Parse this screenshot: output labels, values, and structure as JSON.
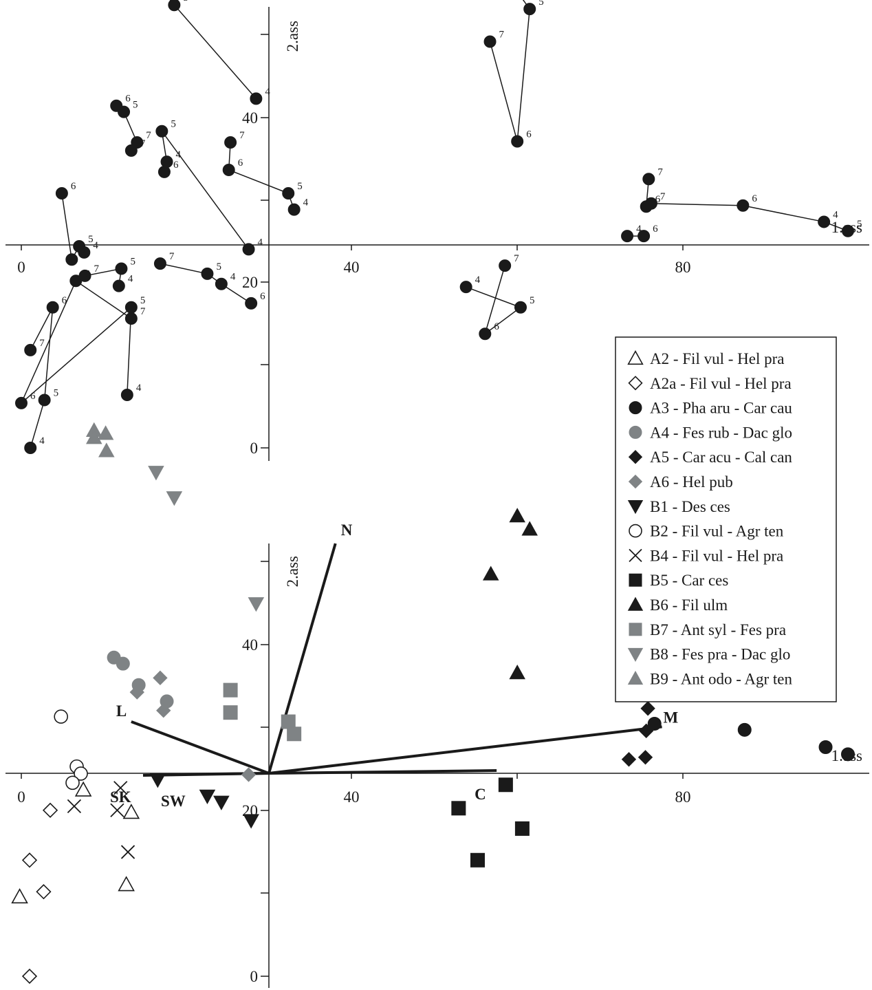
{
  "chart_data": [
    {
      "type": "scatter",
      "panel": "top",
      "xlabel": "1.ass",
      "ylabel": "2.ass",
      "x_ticks": [
        "0",
        "40",
        "80"
      ],
      "y_ticks": [
        "0",
        "20",
        "40"
      ],
      "xlim": [
        0,
        103
      ],
      "ylim": [
        0,
        53
      ],
      "origin": [
        30,
        24.5
      ],
      "series": [
        {
          "group": "A3",
          "marker": "circle",
          "color": "#1a1a1a",
          "points": [
            {
              "x": 8.8,
              "y": 48.5,
              "label": "6"
            },
            {
              "x": 10.2,
              "y": 48.0,
              "label": "7"
            },
            {
              "x": 8.8,
              "y": 47.5,
              "label": "4"
            },
            {
              "x": 10.3,
              "y": 46.0,
              "label": "5"
            }
          ]
        },
        {
          "group": "A3",
          "marker": "circle",
          "color": "#1a1a1a",
          "points": [
            {
              "x": 16.3,
              "y": 45.8,
              "label": "7 6"
            },
            {
              "x": 18.5,
              "y": 43.5,
              "label": "5"
            },
            {
              "x": 28.4,
              "y": 34.3,
              "label": "4"
            }
          ]
        },
        {
          "group": "A3",
          "marker": "circle",
          "color": "#1a1a1a",
          "points": [
            {
              "x": 60.0,
              "y": 44.8,
              "label": "4"
            },
            {
              "x": 61.5,
              "y": 43.1,
              "label": "5"
            },
            {
              "x": 60.0,
              "y": 30.1,
              "label": "6"
            },
            {
              "x": 56.7,
              "y": 39.9,
              "label": "7"
            }
          ]
        },
        {
          "group": "A3",
          "marker": "circle",
          "color": "#1a1a1a",
          "points": [
            {
              "x": 11.5,
              "y": 33.6,
              "label": "6"
            },
            {
              "x": 12.4,
              "y": 33.0,
              "label": "5"
            },
            {
              "x": 14.0,
              "y": 30.0,
              "label": "7"
            },
            {
              "x": 13.3,
              "y": 29.2,
              "label": "7"
            }
          ]
        },
        {
          "group": "A3",
          "marker": "circle",
          "color": "#1a1a1a",
          "points": [
            {
              "x": 17.0,
              "y": 31.1,
              "label": "5"
            },
            {
              "x": 17.6,
              "y": 28.1,
              "label": "4"
            },
            {
              "x": 17.3,
              "y": 27.1,
              "label": "6"
            }
          ]
        },
        {
          "group": "A3",
          "marker": "circle",
          "color": "#1a1a1a",
          "points": [
            {
              "x": 17.0,
              "y": 31.1,
              "label": "5"
            },
            {
              "x": 27.5,
              "y": 19.5,
              "label": "4"
            }
          ]
        },
        {
          "group": "A3",
          "marker": "circle",
          "color": "#1a1a1a",
          "points": [
            {
              "x": 25.3,
              "y": 30.0,
              "label": "7"
            },
            {
              "x": 25.1,
              "y": 27.3,
              "label": "6"
            },
            {
              "x": 32.3,
              "y": 25.0,
              "label": "5"
            },
            {
              "x": 33.0,
              "y": 23.4,
              "label": "4"
            }
          ]
        },
        {
          "group": "A3",
          "marker": "circle",
          "color": "#1a1a1a",
          "points": [
            {
              "x": 75.9,
              "y": 26.4,
              "label": "7"
            },
            {
              "x": 75.6,
              "y": 23.7,
              "label": "6"
            },
            {
              "x": 76.2,
              "y": 24.0,
              "label": "7"
            },
            {
              "x": 87.3,
              "y": 23.8,
              "label": "6"
            },
            {
              "x": 97.1,
              "y": 22.2,
              "label": "4"
            },
            {
              "x": 100.0,
              "y": 21.3,
              "label": "5"
            }
          ]
        },
        {
          "group": "A3",
          "marker": "circle",
          "color": "#1a1a1a",
          "points": [
            {
              "x": 73.3,
              "y": 20.8,
              "label": "4"
            },
            {
              "x": 75.3,
              "y": 20.8,
              "label": "6"
            }
          ]
        },
        {
          "group": "A3",
          "marker": "circle",
          "color": "#1a1a1a",
          "points": [
            {
              "x": 4.9,
              "y": 25.0,
              "label": "6"
            },
            {
              "x": 6.1,
              "y": 18.5,
              "label": "7"
            },
            {
              "x": 7.0,
              "y": 19.8,
              "label": "5"
            },
            {
              "x": 7.6,
              "y": 19.2,
              "label": "4"
            }
          ]
        },
        {
          "group": "A3",
          "marker": "circle",
          "color": "#1a1a1a",
          "points": [
            {
              "x": 53.8,
              "y": 15.8,
              "label": "4"
            },
            {
              "x": 60.4,
              "y": 13.8,
              "label": "5"
            },
            {
              "x": 56.1,
              "y": 11.2,
              "label": "6"
            },
            {
              "x": 58.5,
              "y": 17.9,
              "label": "7"
            }
          ]
        },
        {
          "group": "A3",
          "marker": "circle",
          "color": "#1a1a1a",
          "points": [
            {
              "x": 6.6,
              "y": 16.4,
              "label": "6"
            },
            {
              "x": 7.7,
              "y": 16.9,
              "label": "7"
            },
            {
              "x": 12.1,
              "y": 17.6,
              "label": "5"
            },
            {
              "x": 11.8,
              "y": 15.9,
              "label": "4"
            }
          ]
        },
        {
          "group": "A3",
          "marker": "circle",
          "color": "#1a1a1a",
          "points": [
            {
              "x": 6.6,
              "y": 16.4,
              "label": "6"
            },
            {
              "x": 13.3,
              "y": 12.7,
              "label": "7"
            }
          ]
        },
        {
          "group": "A3",
          "marker": "circle",
          "color": "#1a1a1a",
          "points": [
            {
              "x": 13.3,
              "y": 13.8,
              "label": "5"
            },
            {
              "x": 12.8,
              "y": 5.2,
              "label": "4"
            }
          ]
        },
        {
          "group": "A3",
          "marker": "circle",
          "color": "#1a1a1a",
          "points": [
            {
              "x": 3.8,
              "y": 13.8,
              "label": "6"
            },
            {
              "x": 1.1,
              "y": 9.6,
              "label": "7"
            }
          ]
        },
        {
          "group": "A3",
          "marker": "circle",
          "color": "#1a1a1a",
          "points": [
            {
              "x": 3.8,
              "y": 13.8,
              "label": "6"
            },
            {
              "x": 2.8,
              "y": 4.7,
              "label": "5"
            },
            {
              "x": 1.1,
              "y": 0.0,
              "label": "4"
            }
          ]
        },
        {
          "group": "A3",
          "marker": "circle",
          "color": "#1a1a1a",
          "points": [
            {
              "x": 0.0,
              "y": 4.4,
              "label": "6"
            },
            {
              "x": 6.6,
              "y": 16.4,
              "label": "6"
            }
          ]
        },
        {
          "group": "A3",
          "marker": "circle",
          "color": "#1a1a1a",
          "points": [
            {
              "x": 0.0,
              "y": 4.4,
              "label": "6"
            },
            {
              "x": 13.3,
              "y": 13.8,
              "label": "5"
            }
          ]
        },
        {
          "group": "A3",
          "marker": "circle",
          "color": "#1a1a1a",
          "points": [
            {
              "x": 16.8,
              "y": 18.1,
              "label": "7"
            },
            {
              "x": 22.5,
              "y": 17.1,
              "label": "5"
            },
            {
              "x": 24.2,
              "y": 16.1,
              "label": "4"
            },
            {
              "x": 27.8,
              "y": 14.2,
              "label": "6"
            }
          ]
        }
      ]
    },
    {
      "type": "scatter",
      "panel": "bottom",
      "xlabel": "1.ass",
      "ylabel": "2.ass",
      "x_ticks": [
        "0",
        "40",
        "80"
      ],
      "y_ticks": [
        "0",
        "20",
        "40"
      ],
      "xlim": [
        0,
        103
      ],
      "ylim": [
        0,
        53
      ],
      "origin": [
        30,
        24.5
      ],
      "vectors": [
        {
          "label": "N",
          "x": 38.0,
          "y": 42.5
        },
        {
          "label": "L",
          "x": 13.3,
          "y": 25.0
        },
        {
          "label": "SK",
          "x": 14.8,
          "y": 24.5
        },
        {
          "label": "SW",
          "x": 16.5,
          "y": 24.5
        },
        {
          "label": "M",
          "x": 77.5,
          "y": 24.5
        },
        {
          "label": "C",
          "x": 57.5,
          "y": 20.2
        }
      ],
      "series": [
        {
          "name": "A2 - Fil vul - Hel pra",
          "marker": "triangle-up",
          "filled": false,
          "color": "#1a1a1a",
          "points": [
            {
              "x": 7.5,
              "y": 18.3
            },
            {
              "x": 13.3,
              "y": 16.1
            },
            {
              "x": 12.7,
              "y": 9.0
            },
            {
              "x": -0.2,
              "y": 7.8
            }
          ]
        },
        {
          "name": "A2a - Fil vul - Hel pra",
          "marker": "diamond",
          "filled": false,
          "color": "#1a1a1a",
          "points": [
            {
              "x": 3.5,
              "y": 16.3
            },
            {
              "x": 1.0,
              "y": 11.4
            },
            {
              "x": 2.7,
              "y": 8.3
            },
            {
              "x": 1.0,
              "y": 0.0
            }
          ]
        },
        {
          "name": "A3 - Pha aru - Car cau",
          "marker": "circle",
          "filled": true,
          "color": "#1a1a1a",
          "points": [
            {
              "x": 76.6,
              "y": 24.8
            },
            {
              "x": 87.5,
              "y": 24.2
            },
            {
              "x": 97.3,
              "y": 22.5
            },
            {
              "x": 100.0,
              "y": 21.8
            }
          ]
        },
        {
          "name": "A4 - Fes rub - Dac glo",
          "marker": "circle",
          "filled": true,
          "color": "#7f8385",
          "points": [
            {
              "x": 11.2,
              "y": 31.3
            },
            {
              "x": 12.3,
              "y": 30.7
            },
            {
              "x": 14.2,
              "y": 28.6
            },
            {
              "x": 17.6,
              "y": 27.0
            }
          ]
        },
        {
          "name": "A5 - Car acu - Cal can",
          "marker": "diamond",
          "filled": true,
          "color": "#1a1a1a",
          "points": [
            {
              "x": 75.8,
              "y": 26.3
            },
            {
              "x": 75.6,
              "y": 24.1
            },
            {
              "x": 73.5,
              "y": 21.3
            },
            {
              "x": 75.5,
              "y": 21.5
            }
          ]
        },
        {
          "name": "A6 - Hel pub",
          "marker": "diamond",
          "filled": true,
          "color": "#7f8385",
          "points": [
            {
              "x": 16.8,
              "y": 29.3
            },
            {
              "x": 14.0,
              "y": 27.9
            },
            {
              "x": 17.2,
              "y": 26.1
            },
            {
              "x": 27.5,
              "y": 19.8
            }
          ]
        },
        {
          "name": "B1 - Des ces",
          "marker": "triangle-down",
          "filled": true,
          "color": "#1a1a1a",
          "points": [
            {
              "x": 16.5,
              "y": 19.3
            },
            {
              "x": 22.5,
              "y": 17.7
            },
            {
              "x": 24.2,
              "y": 17.1
            },
            {
              "x": 27.8,
              "y": 15.3
            }
          ]
        },
        {
          "name": "B2 - Fil vul - Agr ten",
          "marker": "circle",
          "filled": false,
          "color": "#1a1a1a",
          "points": [
            {
              "x": 4.8,
              "y": 25.5
            },
            {
              "x": 6.7,
              "y": 20.6
            },
            {
              "x": 7.2,
              "y": 19.9
            },
            {
              "x": 6.2,
              "y": 19.0
            }
          ]
        },
        {
          "name": "B4 - Fil vul - Hel pra",
          "marker": "x",
          "filled": false,
          "color": "#1a1a1a",
          "points": [
            {
              "x": 12.0,
              "y": 18.5
            },
            {
              "x": 6.4,
              "y": 16.7
            },
            {
              "x": 11.6,
              "y": 16.3
            },
            {
              "x": 12.9,
              "y": 12.2
            }
          ]
        },
        {
          "name": "B5 - Car ces",
          "marker": "square",
          "filled": true,
          "color": "#1a1a1a",
          "points": [
            {
              "x": 58.6,
              "y": 18.8
            },
            {
              "x": 52.9,
              "y": 16.5
            },
            {
              "x": 60.6,
              "y": 14.5
            },
            {
              "x": 55.2,
              "y": 11.4
            }
          ]
        },
        {
          "name": "B6 - Fil ulm",
          "marker": "triangle-up",
          "filled": true,
          "color": "#1a1a1a",
          "points": [
            {
              "x": 60.0,
              "y": 45.2
            },
            {
              "x": 61.5,
              "y": 43.9
            },
            {
              "x": 56.8,
              "y": 39.5
            },
            {
              "x": 60.0,
              "y": 29.8
            }
          ]
        },
        {
          "name": "B7 - Ant syl - Fes pra",
          "marker": "square",
          "filled": true,
          "color": "#7f8385",
          "points": [
            {
              "x": 25.3,
              "y": 28.1
            },
            {
              "x": 25.3,
              "y": 25.9
            },
            {
              "x": 32.3,
              "y": 25.0
            },
            {
              "x": 33.0,
              "y": 23.8
            }
          ]
        },
        {
          "name": "B8 - Fes pra - Dac glo",
          "marker": "triangle-down",
          "filled": true,
          "color": "#7f8385",
          "points": [
            {
              "x": 16.3,
              "y": 49.5
            },
            {
              "x": 18.5,
              "y": 47.0
            },
            {
              "x": 28.4,
              "y": 36.6
            }
          ]
        },
        {
          "name": "B9 - Ant odo - Agr ten",
          "marker": "triangle-up",
          "filled": true,
          "color": "#7f8385",
          "points": [
            {
              "x": 8.8,
              "y": 53.6
            },
            {
              "x": 10.2,
              "y": 53.3
            },
            {
              "x": 8.8,
              "y": 52.9
            },
            {
              "x": 10.3,
              "y": 51.6
            }
          ]
        }
      ]
    }
  ]
}
